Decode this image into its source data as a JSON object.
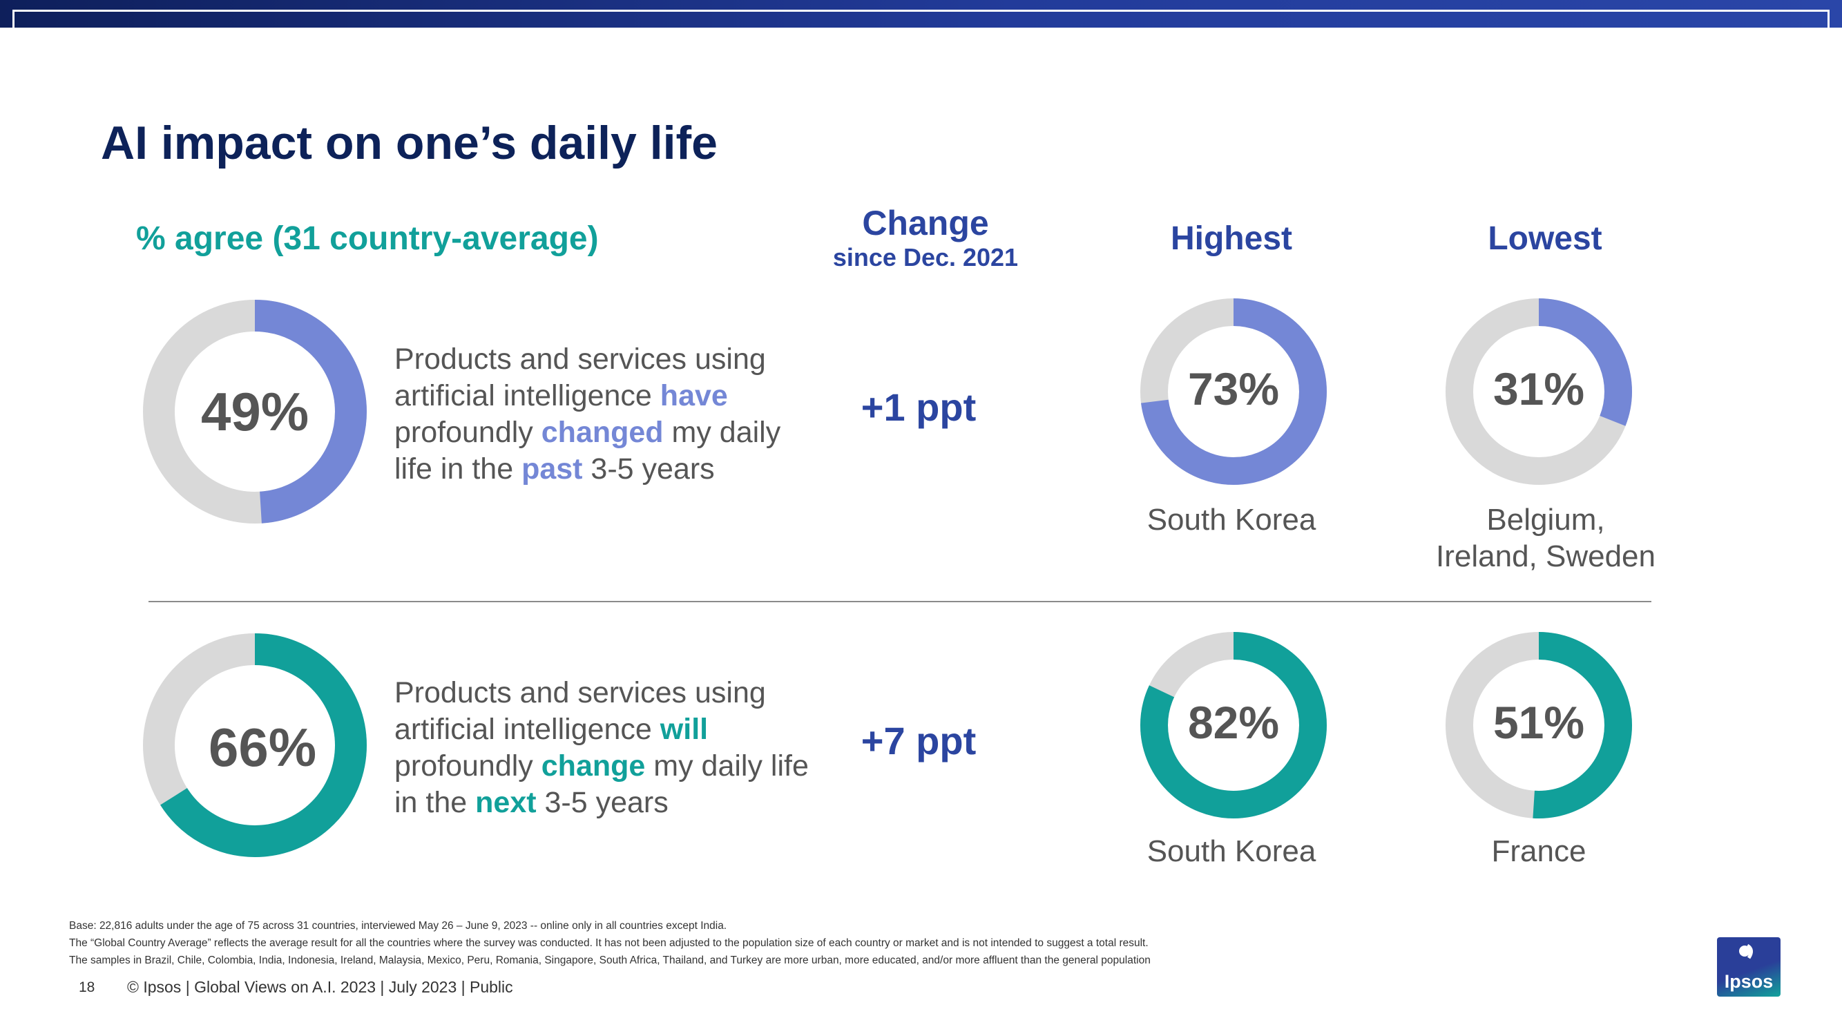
{
  "title": "AI impact on one’s daily life",
  "headers": {
    "agree": "% agree (31 country-average)",
    "change": "Change",
    "change_since": "since Dec. 2021",
    "highest": "Highest",
    "lowest": "Lowest"
  },
  "colors": {
    "blue": "#7487d6",
    "teal": "#11a09a",
    "track": "#d9d9d9",
    "navy": "#2b45a0"
  },
  "rows": [
    {
      "statement": {
        "prefix": "Products and services using artificial intelligence ",
        "kw1": "have",
        "mid1": " profoundly ",
        "kw2": "changed",
        "mid2": " my daily life in the ",
        "kw3": "past",
        "suffix": " 3-5 years"
      },
      "average_label": "49%",
      "change": "+1 ppt",
      "highest_label": "73%",
      "highest_country": "South Korea",
      "lowest_label": "31%",
      "lowest_country_line1": "Belgium,",
      "lowest_country_line2": "Ireland, Sweden"
    },
    {
      "statement": {
        "prefix": "Products and services using artificial intelligence ",
        "kw1": "will",
        "mid1": " profoundly ",
        "kw2": "change",
        "mid2": " my daily life in the ",
        "kw3": "next",
        "suffix": " 3-5 years"
      },
      "average_label": "66%",
      "change": "+7 ppt",
      "highest_label": "82%",
      "highest_country": "South Korea",
      "lowest_label": "51%",
      "lowest_country_line1": "France",
      "lowest_country_line2": ""
    }
  ],
  "chart_data": [
    {
      "type": "pie",
      "name": "past-average",
      "values": [
        49,
        51
      ],
      "color": "#7487d6"
    },
    {
      "type": "pie",
      "name": "past-highest",
      "values": [
        73,
        27
      ],
      "color": "#7487d6"
    },
    {
      "type": "pie",
      "name": "past-lowest",
      "values": [
        31,
        69
      ],
      "color": "#7487d6"
    },
    {
      "type": "pie",
      "name": "future-average",
      "values": [
        66,
        34
      ],
      "color": "#11a09a"
    },
    {
      "type": "pie",
      "name": "future-highest",
      "values": [
        82,
        18
      ],
      "color": "#11a09a"
    },
    {
      "type": "pie",
      "name": "future-lowest",
      "values": [
        51,
        49
      ],
      "color": "#11a09a"
    }
  ],
  "notes": [
    "Base: 22,816 adults under the age of 75 across 31 countries, interviewed May 26 – June 9, 2023 -- online only in all countries except India.",
    "The “Global Country Average” reflects the average result for all the countries where the survey was conducted. It has not been adjusted to the population size of each country or market and is not intended to suggest a total result.",
    "The samples in Brazil, Chile, Colombia, India, Indonesia, Ireland, Malaysia, Mexico, Peru, Romania, Singapore, South Africa, Thailand, and Turkey are more urban, more educated, and/or more affluent than the general population"
  ],
  "footer": {
    "page": "18",
    "copyright": "© Ipsos | Global Views on A.I. 2023 | July 2023 | Public"
  },
  "logo": {
    "text": "Ipsos"
  }
}
